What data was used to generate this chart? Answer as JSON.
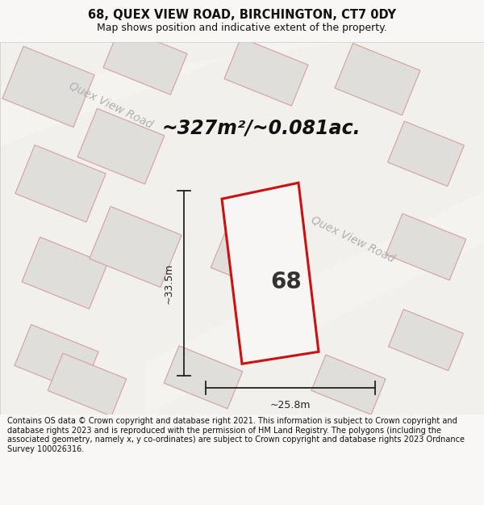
{
  "title_line1": "68, QUEX VIEW ROAD, BIRCHINGTON, CT7 0DY",
  "title_line2": "Map shows position and indicative extent of the property.",
  "area_text": "~327m²/~0.081ac.",
  "label_number": "68",
  "dim_width": "~25.8m",
  "dim_height": "~33.5m",
  "road_label_upper": "Quex View Road",
  "road_label_lower": "Quex View Road",
  "footer": "Contains OS data © Crown copyright and database right 2021. This information is subject to Crown copyright and database rights 2023 and is reproduced with the permission of HM Land Registry. The polygons (including the associated geometry, namely x, y co-ordinates) are subject to Crown copyright and database rights 2023 Ordnance Survey 100026316.",
  "bg_color": "#f8f7f5",
  "map_bg": "#f0efeb",
  "building_fill": "#e0deda",
  "building_edge": "#d4a0a0",
  "road_fill": "#fafaf8",
  "property_edge": "#cc1111",
  "property_fill": "#f8f5f5",
  "dim_color": "#222222",
  "road_text_color": "#aaaaaa",
  "title_color": "#111111",
  "footer_color": "#111111"
}
